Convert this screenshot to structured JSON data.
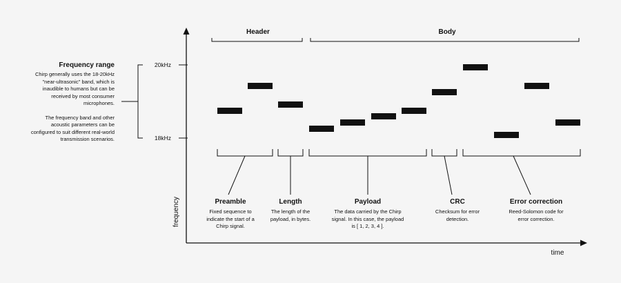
{
  "sections": {
    "header_label": "Header",
    "body_label": "Body"
  },
  "axes": {
    "x_label": "time",
    "y_label": "frequency",
    "tick_high": "20kHz",
    "tick_low": "18kHz"
  },
  "frequency_range": {
    "title": "Frequency range",
    "paragraph1": "Chirp generally uses the 18-20kHz \"near-ultrasonic\" band, which is inaudible to humans but can be received by most consumer microphones.",
    "paragraph2": "The frequency band and other acoustic parameters can be configured to suit different real-world transmission scenarios."
  },
  "segments": [
    {
      "title": "Preamble",
      "description": "Fixed sequence to indicate the start of a Chirp signal."
    },
    {
      "title": "Length",
      "description": "The length of the payload, in bytes."
    },
    {
      "title": "Payload",
      "description": "The data carried by the Chirp signal. In this case, the payload is [ 1, 2, 3, 4 ]."
    },
    {
      "title": "CRC",
      "description": "Checksum for error detection."
    },
    {
      "title": "Error correction",
      "description": "Reed-Solomon code for error correction."
    }
  ],
  "colors": {
    "background": "#f5f5f5",
    "ink": "#111111"
  }
}
